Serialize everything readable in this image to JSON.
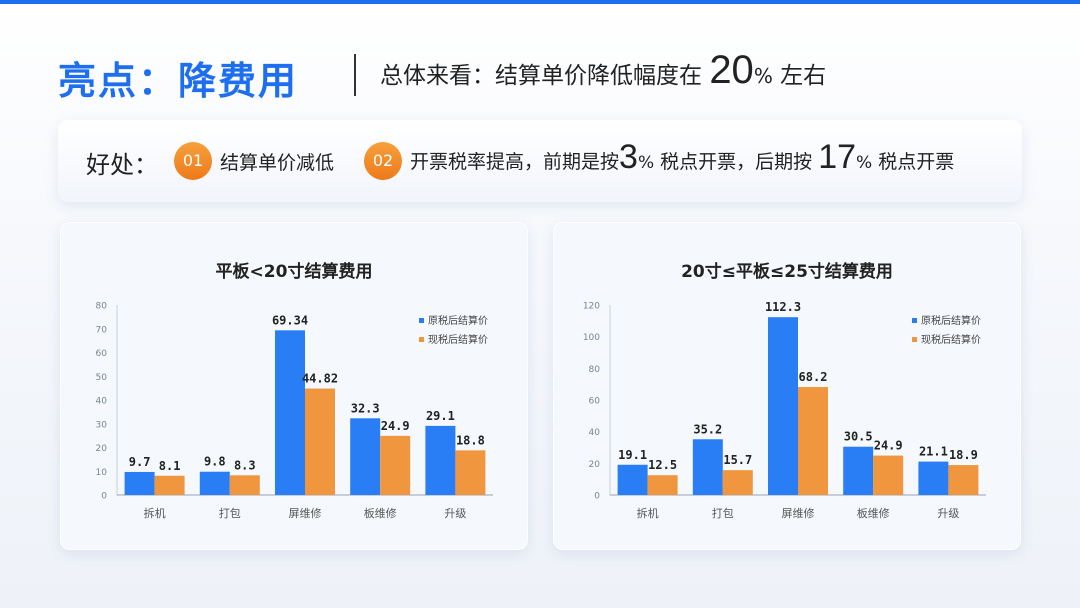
{
  "header": {
    "title": "亮点：降费用",
    "subtitle_prefix": "总体来看：结算单价降低幅度在",
    "subtitle_number": "20",
    "subtitle_pct": "%",
    "subtitle_suffix": "左右"
  },
  "benefits": {
    "label": "好处：",
    "items": [
      {
        "num": "01",
        "text": "结算单价减低"
      },
      {
        "num": "02",
        "text_a": "开票税率提高，前期是按",
        "v1": "3",
        "pct1": "%",
        "text_b": "税点开票，后期按",
        "v2": "17",
        "pct2": "%",
        "text_c": "税点开票"
      }
    ]
  },
  "colors": {
    "series1": "#2a7ef5",
    "series2": "#f0963f",
    "accent": "#1e6ef0"
  },
  "chart_data": [
    {
      "type": "bar",
      "title": "平板<20寸结算费用",
      "categories": [
        "拆机",
        "打包",
        "屏维修",
        "板维修",
        "升级"
      ],
      "series": [
        {
          "name": "原税后结算价",
          "values": [
            9.7,
            9.8,
            69.34,
            32.3,
            29.1
          ]
        },
        {
          "name": "现税后结算价",
          "values": [
            8.1,
            8.3,
            44.82,
            24.9,
            18.8
          ]
        }
      ],
      "ylim": [
        0,
        80
      ],
      "yticks": [
        0,
        10,
        20,
        30,
        40,
        50,
        60,
        70,
        80
      ],
      "legend": "top-right",
      "grid": false
    },
    {
      "type": "bar",
      "title": "20寸≤平板≤25寸结算费用",
      "categories": [
        "拆机",
        "打包",
        "屏维修",
        "板维修",
        "升级"
      ],
      "series": [
        {
          "name": "原税后结算价",
          "values": [
            19.1,
            35.2,
            112.3,
            30.5,
            21.1
          ]
        },
        {
          "name": "现税后结算价",
          "values": [
            12.5,
            15.7,
            68.2,
            24.9,
            18.9
          ]
        }
      ],
      "ylim": [
        0,
        120
      ],
      "yticks": [
        0,
        20,
        40,
        60,
        80,
        100,
        120
      ],
      "legend": "top-right",
      "grid": false
    }
  ]
}
